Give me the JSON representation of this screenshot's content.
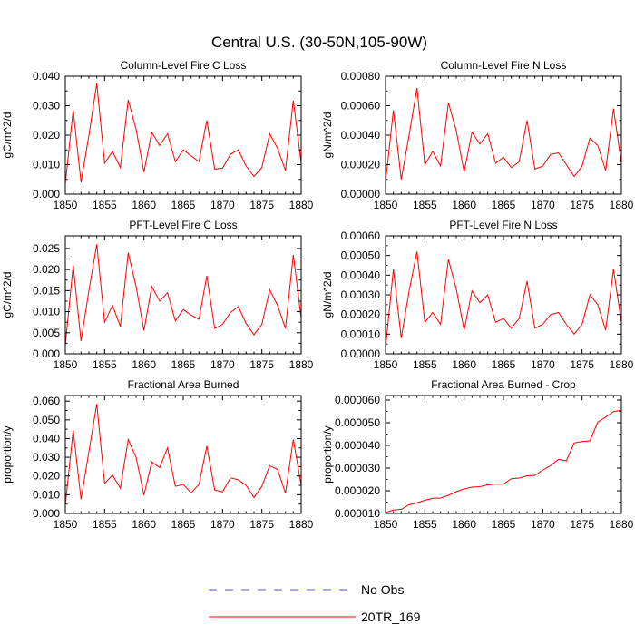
{
  "figure": {
    "title": "Central U.S. (30-50N,105-90W)"
  },
  "legend": {
    "entries": [
      {
        "label": "No Obs",
        "style": "dashed",
        "color": "#5555cc"
      },
      {
        "label": "20TR_169",
        "style": "solid",
        "color": "#ff0000"
      }
    ]
  },
  "chart_data": [
    {
      "type": "line",
      "title": "Column-Level Fire C Loss",
      "ylabel": "gC/m^2/d",
      "xlim": [
        1850,
        1880
      ],
      "ylim": [
        0,
        0.04
      ],
      "xticks": [
        1850,
        1855,
        1860,
        1865,
        1870,
        1875,
        1880
      ],
      "xtick_labels": [
        "1850",
        "1855",
        "1860",
        "1865",
        "1870",
        "1875",
        "1880"
      ],
      "yticks": [
        0,
        0.01,
        0.02,
        0.03,
        0.04
      ],
      "ytick_labels": [
        "0.000",
        "0.010",
        "0.020",
        "0.030",
        "0.040"
      ],
      "series": [
        {
          "name": "20TR_169",
          "color": "#ff0000",
          "x": [
            1850,
            1851,
            1852,
            1853,
            1854,
            1855,
            1856,
            1857,
            1858,
            1859,
            1860,
            1861,
            1862,
            1863,
            1864,
            1865,
            1866,
            1867,
            1868,
            1869,
            1870,
            1871,
            1872,
            1873,
            1874,
            1875,
            1876,
            1877,
            1878,
            1879,
            1880
          ],
          "y": [
            0.0035,
            0.0285,
            0.004,
            0.02,
            0.0375,
            0.0105,
            0.0145,
            0.009,
            0.032,
            0.022,
            0.0075,
            0.021,
            0.0165,
            0.0205,
            0.011,
            0.015,
            0.013,
            0.011,
            0.025,
            0.0085,
            0.0088,
            0.0135,
            0.015,
            0.0095,
            0.006,
            0.009,
            0.0205,
            0.0155,
            0.008,
            0.0318,
            0.0105
          ]
        }
      ]
    },
    {
      "type": "line",
      "title": "Column-Level Fire N Loss",
      "ylabel": "gN/m^2/d",
      "xlim": [
        1850,
        1880
      ],
      "ylim": [
        0,
        0.0008
      ],
      "xticks": [
        1850,
        1855,
        1860,
        1865,
        1870,
        1875,
        1880
      ],
      "xtick_labels": [
        "1850",
        "1855",
        "1860",
        "1865",
        "1870",
        "1875",
        "1880"
      ],
      "yticks": [
        0,
        0.0002,
        0.0004,
        0.0006,
        0.0008
      ],
      "ytick_labels": [
        "0.00000",
        "0.00020",
        "0.00040",
        "0.00060",
        "0.00080"
      ],
      "series": [
        {
          "name": "20TR_169",
          "color": "#ff0000",
          "x": [
            1850,
            1851,
            1852,
            1853,
            1854,
            1855,
            1856,
            1857,
            1858,
            1859,
            1860,
            1861,
            1862,
            1863,
            1864,
            1865,
            1866,
            1867,
            1868,
            1869,
            1870,
            1871,
            1872,
            1873,
            1874,
            1875,
            1876,
            1877,
            1878,
            1879,
            1880
          ],
          "y": [
            8e-05,
            0.00057,
            0.0001,
            0.0004,
            0.00072,
            0.0002,
            0.00029,
            0.00019,
            0.00062,
            0.00043,
            0.00015,
            0.00042,
            0.00034,
            0.00041,
            0.00021,
            0.00025,
            0.00018,
            0.00022,
            0.0005,
            0.00017,
            0.00019,
            0.00027,
            0.00028,
            0.0002,
            0.00012,
            0.00019,
            0.00038,
            0.00033,
            0.00016,
            0.00058,
            0.00021
          ]
        }
      ]
    },
    {
      "type": "line",
      "title": "PFT-Level Fire C Loss",
      "ylabel": "gC/m^2/d",
      "xlim": [
        1850,
        1880
      ],
      "ylim": [
        0,
        0.028
      ],
      "xticks": [
        1850,
        1855,
        1860,
        1865,
        1870,
        1875,
        1880
      ],
      "xtick_labels": [
        "1850",
        "1855",
        "1860",
        "1865",
        "1870",
        "1875",
        "1880"
      ],
      "yticks": [
        0,
        0.005,
        0.01,
        0.015,
        0.02,
        0.025
      ],
      "ytick_labels": [
        "0.000",
        "0.005",
        "0.010",
        "0.015",
        "0.020",
        "0.025"
      ],
      "series": [
        {
          "name": "20TR_169",
          "color": "#ff0000",
          "x": [
            1850,
            1851,
            1852,
            1853,
            1854,
            1855,
            1856,
            1857,
            1858,
            1859,
            1860,
            1861,
            1862,
            1863,
            1864,
            1865,
            1866,
            1867,
            1868,
            1869,
            1870,
            1871,
            1872,
            1873,
            1874,
            1875,
            1876,
            1877,
            1878,
            1879,
            1880
          ],
          "y": [
            0.002,
            0.021,
            0.003,
            0.015,
            0.026,
            0.0075,
            0.0115,
            0.0065,
            0.024,
            0.016,
            0.0055,
            0.016,
            0.0125,
            0.0145,
            0.0078,
            0.0105,
            0.0092,
            0.0082,
            0.0185,
            0.006,
            0.007,
            0.0098,
            0.0112,
            0.0072,
            0.0045,
            0.007,
            0.0152,
            0.0115,
            0.006,
            0.0235,
            0.0085
          ]
        }
      ]
    },
    {
      "type": "line",
      "title": "PFT-Level Fire N Loss",
      "ylabel": "gN/m^2/d",
      "xlim": [
        1850,
        1880
      ],
      "ylim": [
        0,
        0.0006
      ],
      "xticks": [
        1850,
        1855,
        1860,
        1865,
        1870,
        1875,
        1880
      ],
      "xtick_labels": [
        "1850",
        "1855",
        "1860",
        "1865",
        "1870",
        "1875",
        "1880"
      ],
      "yticks": [
        0,
        0.0001,
        0.0002,
        0.0003,
        0.0004,
        0.0005,
        0.0006
      ],
      "ytick_labels": [
        "0.00000",
        "0.00010",
        "0.00020",
        "0.00030",
        "0.00040",
        "0.00050",
        "0.00060"
      ],
      "series": [
        {
          "name": "20TR_169",
          "color": "#ff0000",
          "x": [
            1850,
            1851,
            1852,
            1853,
            1854,
            1855,
            1856,
            1857,
            1858,
            1859,
            1860,
            1861,
            1862,
            1863,
            1864,
            1865,
            1866,
            1867,
            1868,
            1869,
            1870,
            1871,
            1872,
            1873,
            1874,
            1875,
            1876,
            1877,
            1878,
            1879,
            1880
          ],
          "y": [
            3e-05,
            0.00043,
            8e-05,
            0.00032,
            0.00052,
            0.00016,
            0.00021,
            0.00015,
            0.00048,
            0.00033,
            0.00012,
            0.00032,
            0.00026,
            0.0003,
            0.00016,
            0.00018,
            0.00013,
            0.00018,
            0.00037,
            0.00013,
            0.00015,
            0.0002,
            0.00021,
            0.00015,
            0.0001,
            0.00015,
            0.0003,
            0.00025,
            0.00012,
            0.00043,
            0.00016
          ]
        }
      ]
    },
    {
      "type": "line",
      "title": "Fractional Area Burned",
      "ylabel": "proportion/y",
      "xlim": [
        1850,
        1880
      ],
      "ylim": [
        0,
        0.063
      ],
      "xticks": [
        1850,
        1855,
        1860,
        1865,
        1870,
        1875,
        1880
      ],
      "xtick_labels": [
        "1850",
        "1855",
        "1860",
        "1865",
        "1870",
        "1875",
        "1880"
      ],
      "yticks": [
        0,
        0.01,
        0.02,
        0.03,
        0.04,
        0.05,
        0.06
      ],
      "ytick_labels": [
        "0.000",
        "0.010",
        "0.020",
        "0.030",
        "0.040",
        "0.050",
        "0.060"
      ],
      "series": [
        {
          "name": "20TR_169",
          "color": "#ff0000",
          "x": [
            1850,
            1851,
            1852,
            1853,
            1854,
            1855,
            1856,
            1857,
            1858,
            1859,
            1860,
            1861,
            1862,
            1863,
            1864,
            1865,
            1866,
            1867,
            1868,
            1869,
            1870,
            1871,
            1872,
            1873,
            1874,
            1875,
            1876,
            1877,
            1878,
            1879,
            1880
          ],
          "y": [
            0.0045,
            0.0445,
            0.0075,
            0.033,
            0.0585,
            0.016,
            0.0205,
            0.0135,
            0.0395,
            0.03,
            0.0098,
            0.0275,
            0.0245,
            0.035,
            0.0145,
            0.0155,
            0.011,
            0.0155,
            0.036,
            0.0125,
            0.0115,
            0.019,
            0.018,
            0.015,
            0.0085,
            0.0145,
            0.0255,
            0.0235,
            0.0108,
            0.0395,
            0.015
          ]
        }
      ]
    },
    {
      "type": "line",
      "title": "Fractional Area Burned - Crop",
      "ylabel": "proportion/y",
      "xlim": [
        1850,
        1880
      ],
      "ylim": [
        1e-05,
        6.2e-05
      ],
      "xticks": [
        1850,
        1855,
        1860,
        1865,
        1870,
        1875,
        1880
      ],
      "xtick_labels": [
        "1850",
        "1855",
        "1860",
        "1865",
        "1870",
        "1875",
        "1880"
      ],
      "yticks": [
        1e-05,
        2e-05,
        3e-05,
        4e-05,
        5e-05,
        6e-05
      ],
      "ytick_labels": [
        "0.000010",
        "0.000020",
        "0.000030",
        "0.000040",
        "0.000050",
        "0.000060"
      ],
      "series": [
        {
          "name": "20TR_169",
          "color": "#ff0000",
          "x": [
            1850,
            1851,
            1852,
            1853,
            1854,
            1855,
            1856,
            1857,
            1858,
            1859,
            1860,
            1861,
            1862,
            1863,
            1864,
            1865,
            1866,
            1867,
            1868,
            1869,
            1870,
            1871,
            1872,
            1873,
            1874,
            1875,
            1876,
            1877,
            1878,
            1879,
            1880
          ],
          "y": [
            1.04e-05,
            1.15e-05,
            1.18e-05,
            1.38e-05,
            1.47e-05,
            1.58e-05,
            1.67e-05,
            1.68e-05,
            1.8e-05,
            1.96e-05,
            2.08e-05,
            2.16e-05,
            2.18e-05,
            2.26e-05,
            2.29e-05,
            2.29e-05,
            2.53e-05,
            2.56e-05,
            2.66e-05,
            2.68e-05,
            2.91e-05,
            3.11e-05,
            3.39e-05,
            3.32e-05,
            4.11e-05,
            4.17e-05,
            4.2e-05,
            5.03e-05,
            5.25e-05,
            5.49e-05,
            5.55e-05
          ]
        }
      ]
    }
  ]
}
